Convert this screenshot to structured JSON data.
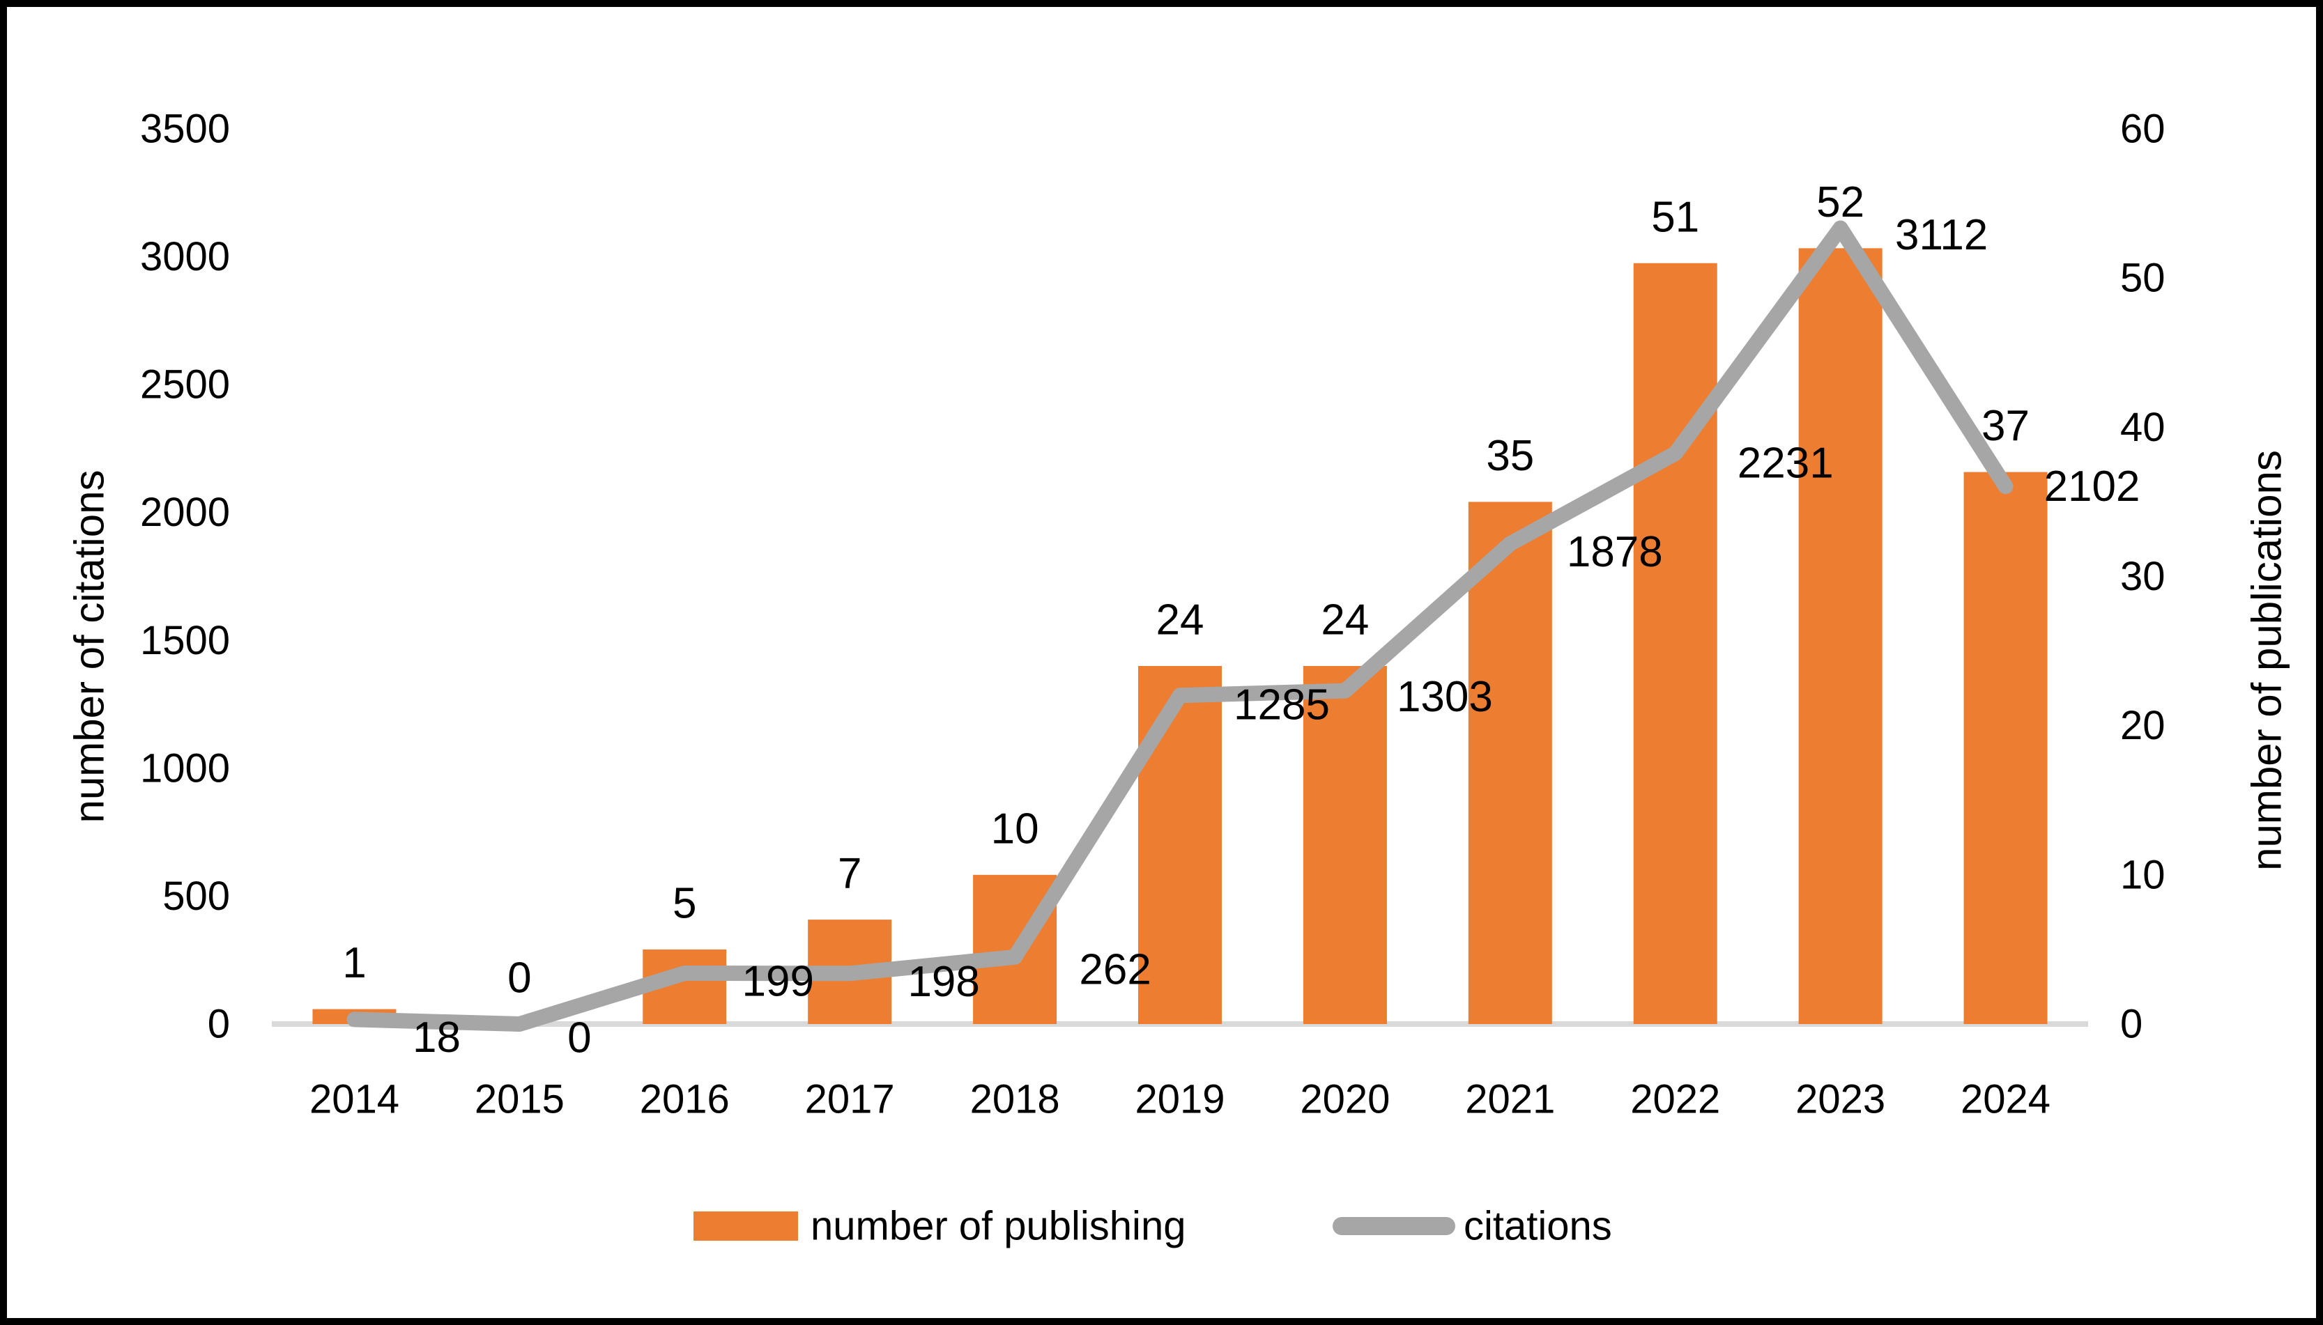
{
  "figure": {
    "background": "#ffffff",
    "border_color": "#000000"
  },
  "chart_data": {
    "type": "bar+line combo",
    "grid": false,
    "legend_position": "bottom",
    "categories": [
      "2014",
      "2015",
      "2016",
      "2017",
      "2018",
      "2019",
      "2020",
      "2021",
      "2022",
      "2023",
      "2024"
    ],
    "series": [
      {
        "name": "number of publishing",
        "type": "bar",
        "axis": "right",
        "color": "#ED7D31",
        "values": [
          1,
          0,
          5,
          7,
          10,
          24,
          24,
          35,
          51,
          52,
          37
        ],
        "data_labels": [
          "1",
          "0",
          "5",
          "7",
          "10",
          "24",
          "24",
          "35",
          "51",
          "52",
          "37"
        ]
      },
      {
        "name": "citations",
        "type": "line",
        "axis": "left",
        "color": "#A6A6A6",
        "values": [
          18,
          0,
          199,
          198,
          262,
          1285,
          1303,
          1878,
          2231,
          3112,
          2102
        ],
        "data_labels": [
          "18",
          "0",
          "199",
          "198",
          "262",
          "1285",
          "1303",
          "1878",
          "2231",
          "3112",
          "2102"
        ]
      }
    ],
    "left_axis": {
      "title": "number of citations",
      "min": 0,
      "max": 3500,
      "step": 500,
      "tick_values": [
        0,
        500,
        1000,
        1500,
        2000,
        2500,
        3000,
        3500
      ],
      "tick_labels": [
        "0",
        "500",
        "1000",
        "1500",
        "2000",
        "2500",
        "3000",
        "3500"
      ]
    },
    "right_axis": {
      "title": "number of publications",
      "min": 0,
      "max": 60,
      "step": 10,
      "tick_values": [
        0,
        10,
        20,
        30,
        40,
        50,
        60
      ],
      "tick_labels": [
        "0",
        "10",
        "20",
        "30",
        "40",
        "50",
        "60"
      ]
    },
    "axis_line_color": "#D9D9D9",
    "legend": [
      {
        "label": "number of publishing",
        "swatch": "bar",
        "color": "#ED7D31"
      },
      {
        "label": "citations",
        "swatch": "line",
        "color": "#A6A6A6"
      }
    ]
  }
}
